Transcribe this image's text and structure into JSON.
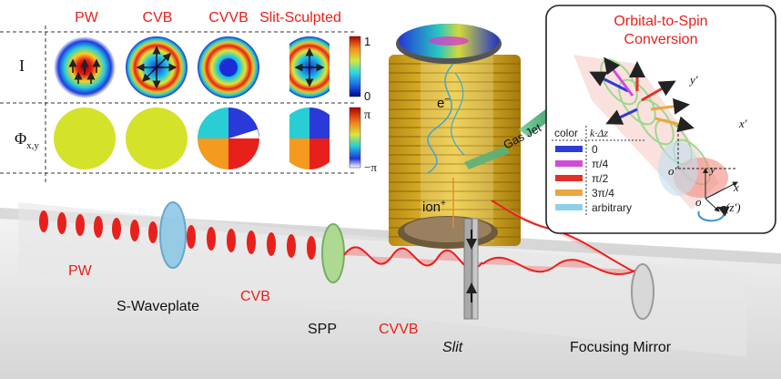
{
  "columns": [
    {
      "label": "PW"
    },
    {
      "label": "CVB"
    },
    {
      "label": "CVVB"
    },
    {
      "label": "Slit-Sculpted"
    }
  ],
  "rows": [
    {
      "symbol": "I"
    },
    {
      "symbol": "Φ",
      "subscript": "x,y"
    }
  ],
  "intensity_bar": {
    "max": "1",
    "min": "0"
  },
  "phase_bar": {
    "max": "π",
    "min": "−π"
  },
  "beam_labels": {
    "pw": "PW",
    "s_waveplate": "S-Waveplate",
    "cvb": "CVB",
    "spp": "SPP",
    "cvvb": "CVVB",
    "slit": "Slit",
    "focusing_mirror": "Focusing Mirror"
  },
  "spectrometer": {
    "electron": "e",
    "electron_sup": "−",
    "ion": "ion",
    "ion_sup": "+",
    "gas_jet": "Gas Jet"
  },
  "inset": {
    "title_line1": "Orbital-to-Spin",
    "title_line2": "Conversion",
    "legend_header_left": "color",
    "legend_header_right": "k·Δz",
    "legend": [
      {
        "label": "0",
        "color": "#2f3bd6"
      },
      {
        "label": "π/4",
        "color": "#d44ad8"
      },
      {
        "label": "π/2",
        "color": "#e0302a"
      },
      {
        "label": "3π/4",
        "color": "#eaa640"
      },
      {
        "label": "arbitrary",
        "color": "#8fd0e8"
      }
    ],
    "axes": {
      "x": "x",
      "y": "y",
      "z": "z(z′)",
      "xp": "x′",
      "yp": "y′",
      "o": "o",
      "op": "o′"
    }
  }
}
